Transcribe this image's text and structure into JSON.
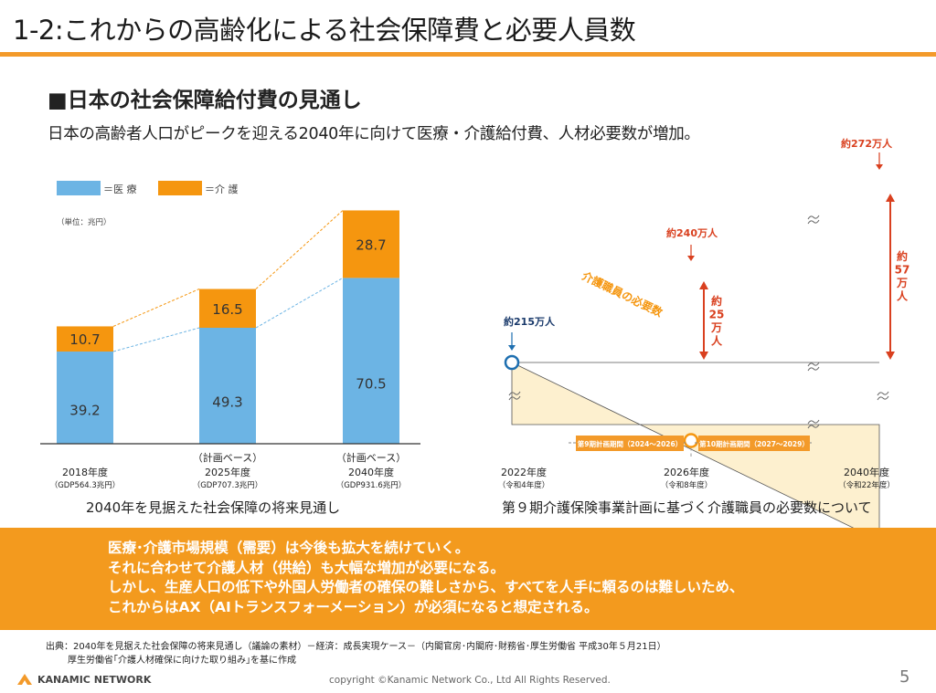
{
  "header": {
    "title": "1-2:これからの高齢化による社会保障費と必要人員数",
    "heading": "■日本の社会保障給付費の見通し",
    "subtitle": "日本の高齢者人口がピークを迎える2040年に向けて医療・介護給付費、人材必要数が増加。"
  },
  "colors": {
    "medical": "#6cb4e4",
    "care": "#f5960f",
    "accent": "#f39a2a",
    "area": "#fdf0cf",
    "marker": "#1e6fb0",
    "arrow": "#d9401f",
    "banner": "#f39a1e"
  },
  "chart_data": [
    {
      "type": "bar",
      "stacked": true,
      "legend": [
        "＝医 療",
        "＝介 護"
      ],
      "unit": "（単位：兆円）",
      "categories": [
        {
          "top": "",
          "year": "2018年度",
          "gdp": "（GDP564.3兆円）"
        },
        {
          "top": "（計画ベース）",
          "year": "2025年度",
          "gdp": "（GDP707.3兆円）"
        },
        {
          "top": "（計画ベース）",
          "year": "2040年度",
          "gdp": "（GDP931.6兆円）"
        }
      ],
      "series": [
        {
          "name": "＝医 療",
          "values": [
            39.2,
            49.3,
            70.5
          ],
          "labels": [
            "39.2",
            "49.3",
            "70.5"
          ]
        },
        {
          "name": "＝介 護",
          "values": [
            10.7,
            16.5,
            28.7
          ],
          "labels": [
            "10.7",
            "16.5",
            "28.7"
          ]
        }
      ],
      "ylim": [
        0,
        100
      ],
      "caption": "2040年を見据えた社会保障の将来見通し"
    },
    {
      "type": "area",
      "x": [
        {
          "year": "2022年度",
          "era": "（令和4年度）"
        },
        {
          "year": "2026年度",
          "era": "（令和8年度）"
        },
        {
          "year": "2040年度",
          "era": "（令和22年度）"
        }
      ],
      "points": [
        {
          "value": 215,
          "label": "約215万人"
        },
        {
          "value": 240,
          "label": "約240万人"
        },
        {
          "value": 272,
          "label": "約272万人"
        }
      ],
      "line_label": "介護職員の必要数",
      "increase_labels": [
        {
          "chars": [
            "約",
            "25",
            "万",
            "人"
          ]
        },
        {
          "chars": [
            "約",
            "57",
            "万",
            "人"
          ]
        }
      ],
      "periods": [
        "第9期計画期間（2024～2026）",
        "第10期計画期間（2027～2029）"
      ],
      "caption": "第９期介護保険事業計画に基づく介護職員の必要数について"
    }
  ],
  "banner": {
    "lines": [
      "医療･介護市場規模（需要）は今後も拡大を続けていく。",
      "それに合わせて介護人材（供給）も大幅な増加が必要になる。",
      "しかし、生産人口の低下や外国人労働者の確保の難しさから、すべてを人手に頼るのは難しいため、",
      "これからはAX（AIトランスフォーメーション）が必須になると想定される。"
    ]
  },
  "source": {
    "line1": "出典：2040年を見据えた社会保障の将来見通し（議論の素材）－経済：成長実現ケース－（内閣官房･内閣府･財務省･厚生労働省 平成30年５月21日）",
    "line2": "厚生労働省｢介護人材確保に向けた取り組み｣を基に作成"
  },
  "footer": {
    "logo": "KANAMIC NETWORK",
    "copyright": "copyright ©Kanamic Network Co., Ltd All Rights Reserved.",
    "page": "5"
  }
}
